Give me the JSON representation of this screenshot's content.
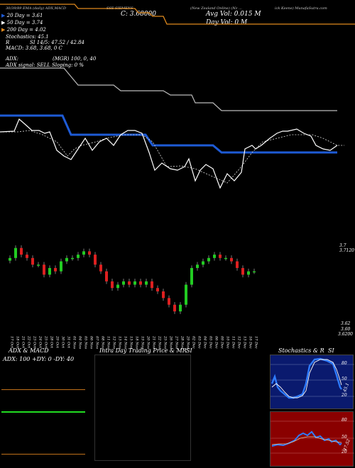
{
  "header": {
    "left_strip": "30/39/89 EMA (daily) ADX,MACD",
    "left_strip2": "...",
    "center_strip": "SSE SIEMENS",
    "right_strip": "(New Zealand Online) (Nz ...",
    "far_right_strip": "ick Keene) MunafaSutra.com",
    "close_label": "C: 3.68000",
    "avg_vol": "Avg Vol: 0.015 M",
    "day_vol": "Day Vol: 0   M"
  },
  "legend": {
    "ema20": "20  Day = 3.61",
    "ema50": "50  Day = 3.74",
    "ema200": "200  Day = 4.02",
    "stoch": "Stochastics: 45.1",
    "rsi_prefix": "R",
    "si": "SI 14/5: 47.52 / 42.84",
    "macd": "MACD: 3.68, 3.68, 0  C",
    "adx": "ADX:",
    "mgr": "(MGR) 100, 0, 40",
    "adx_signal": "ADX  signal: SELL  Sloping: 0 %"
  },
  "price_labels": {
    "top_right": "3.7",
    "top_right2": "3.7120",
    "bottom_right": "3.62",
    "bottom_right2": "3.60",
    "bottom_right3": "3.6200"
  },
  "panels": {
    "adx_title": "ADX  & MACD",
    "adx_values": "ADX: 100  +DY: 0  -DY: 40",
    "intraday_title": "Intra  Day Trading Price  & MR",
    "intraday_si": "SI",
    "stoch_title": "Stochastics & R",
    "stoch_si": "SI",
    "stoch_ticks": [
      "80",
      "50",
      "20"
    ],
    "stoch_current": "45.1",
    "rsi_ticks": [
      "80",
      "50",
      "20"
    ],
    "rsi_current": "47.52"
  },
  "colors": {
    "ema_blue": "#1e5bd6",
    "ema_orange": "#e08a1e",
    "up_green": "#22cc22",
    "down_red": "#dd2020",
    "stoch_bg": "#0a1a6e",
    "rsi_bg": "#8a0000"
  },
  "chart_data": {
    "type": "line",
    "x": [
      "17 Oct",
      "18 Oct",
      "21 Oct",
      "22 Oct",
      "23 Oct",
      "24 Oct",
      "25 Oct",
      "28 Oct",
      "29 Oct",
      "30 Oct",
      "31 Oct",
      "01 Nov",
      "04 Nov",
      "05 Nov",
      "06 Nov",
      "07 Nov",
      "08 Nov",
      "11 Nov",
      "12 Nov",
      "13 Nov",
      "14 Nov",
      "15 Nov",
      "18 Nov",
      "19 Nov",
      "20 Nov",
      "21 Nov",
      "22 Nov",
      "25 Nov",
      "26 Nov",
      "27 Nov",
      "28 Nov",
      "29 Nov",
      "02 Dec",
      "03 Dec",
      "04 Dec",
      "05 Dec",
      "06 Dec",
      "09 Dec",
      "10 Dec",
      "11 Dec",
      "12 Dec",
      "13 Dec",
      "16 Dec",
      "17 Dec"
    ],
    "close": [
      3.7,
      3.715,
      3.705,
      3.7,
      3.69,
      3.69,
      3.675,
      3.685,
      3.68,
      3.695,
      3.7,
      3.7,
      3.705,
      3.71,
      3.705,
      3.69,
      3.68,
      3.665,
      3.655,
      3.66,
      3.665,
      3.66,
      3.665,
      3.66,
      3.665,
      3.655,
      3.65,
      3.64,
      3.63,
      3.62,
      3.63,
      3.66,
      3.685,
      3.69,
      3.695,
      3.7,
      3.705,
      3.7,
      3.7,
      3.695,
      3.685,
      3.675,
      3.68,
      3.68
    ],
    "ema20": [
      3.63,
      3.63,
      3.63,
      3.63,
      3.63,
      3.63,
      3.62,
      3.62,
      3.62,
      3.62,
      3.62,
      3.62,
      3.62,
      3.62,
      3.62,
      3.62,
      3.62,
      3.61,
      3.61,
      3.61,
      3.61,
      3.61,
      3.61,
      3.61,
      3.61,
      3.61,
      3.61,
      3.61,
      3.61,
      3.61,
      3.61,
      3.61,
      3.61,
      3.61,
      3.61,
      3.61,
      3.61,
      3.61,
      3.61,
      3.61,
      3.61,
      3.61,
      3.61,
      3.61
    ],
    "ema200": 4.02,
    "ema50": 3.74,
    "ylim": [
      3.6,
      3.72
    ],
    "stochastics": 45.1,
    "rsi": 47.52
  }
}
